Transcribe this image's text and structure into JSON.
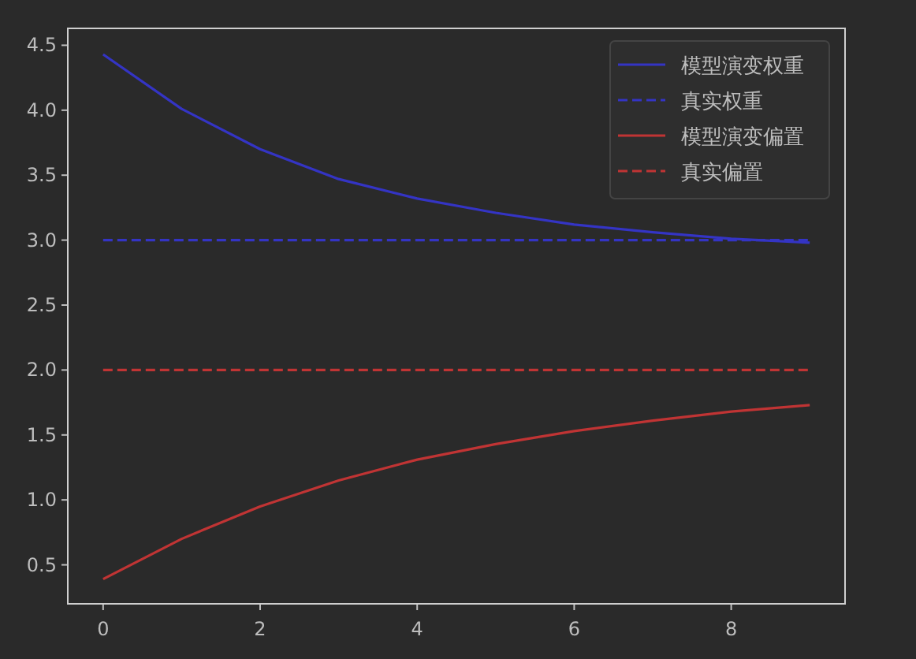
{
  "chart_data": {
    "type": "line",
    "x": [
      0,
      1,
      2,
      3,
      4,
      5,
      6,
      7,
      8,
      9
    ],
    "series": [
      {
        "name": "模型演变权重",
        "color": "#3434c4",
        "line_style": "solid",
        "values": [
          4.43,
          4.01,
          3.7,
          3.47,
          3.32,
          3.21,
          3.12,
          3.06,
          3.01,
          2.98
        ]
      },
      {
        "name": "真实权重",
        "color": "#3434c4",
        "line_style": "dashed",
        "values": [
          3,
          3,
          3,
          3,
          3,
          3,
          3,
          3,
          3,
          3
        ]
      },
      {
        "name": "模型演变偏置",
        "color": "#c03434",
        "line_style": "solid",
        "values": [
          0.39,
          0.7,
          0.95,
          1.15,
          1.31,
          1.43,
          1.53,
          1.61,
          1.68,
          1.73
        ]
      },
      {
        "name": "真实偏置",
        "color": "#c03434",
        "line_style": "dashed",
        "values": [
          2,
          2,
          2,
          2,
          2,
          2,
          2,
          2,
          2,
          2
        ]
      }
    ],
    "xlim": [
      -0.45,
      9.45
    ],
    "ylim": [
      0.2,
      4.63
    ],
    "xticks": [
      0,
      2,
      4,
      6,
      8
    ],
    "yticks": [
      {
        "value": 0.5,
        "label": "0.5"
      },
      {
        "value": 1,
        "label": "1.0"
      },
      {
        "value": 1.5,
        "label": "1.5"
      },
      {
        "value": 2,
        "label": "2.0"
      },
      {
        "value": 2.5,
        "label": "2.5"
      },
      {
        "value": 3,
        "label": "3.0"
      },
      {
        "value": 3.5,
        "label": "3.5"
      },
      {
        "value": 4,
        "label": "4.0"
      },
      {
        "value": 4.5,
        "label": "4.5"
      }
    ],
    "legend": "top right",
    "grid": false
  }
}
